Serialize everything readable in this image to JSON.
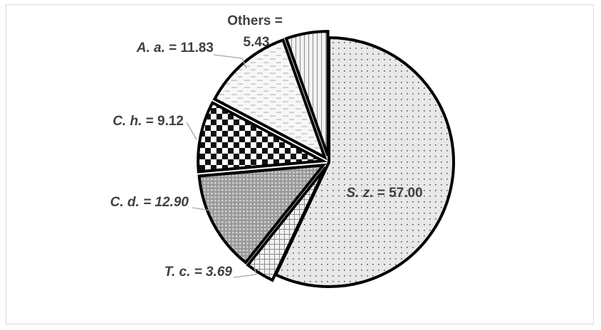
{
  "chart_data": {
    "type": "pie",
    "title": "",
    "slices": [
      {
        "name": "S. z.",
        "value": 57.0,
        "display": "57.00",
        "name_style": "italic",
        "value_style": "normal",
        "pattern": "dots",
        "exploded": false
      },
      {
        "name": "T. c.",
        "value": 3.69,
        "display": "3.69",
        "name_style": "italic",
        "value_style": "italic",
        "pattern": "crosshatch",
        "exploded": true
      },
      {
        "name": "C. d.",
        "value": 12.9,
        "display": "12.90",
        "name_style": "italic",
        "value_style": "italic",
        "pattern": "dense-grid",
        "exploded": true
      },
      {
        "name": "C. h.",
        "value": 9.12,
        "display": "9.12",
        "name_style": "italic",
        "value_style": "normal",
        "pattern": "checkerboard",
        "exploded": true
      },
      {
        "name": "A. a.",
        "value": 11.83,
        "display": "11.83",
        "name_style": "italic",
        "value_style": "normal",
        "pattern": "dashes",
        "exploded": true
      },
      {
        "name": "Others",
        "value": 5.43,
        "display": "5.43",
        "name_style": "normal",
        "value_style": "normal",
        "pattern": "vertical-lines",
        "exploded": true
      }
    ],
    "start_angle_deg": 0,
    "direction": "clockwise",
    "legend": "none",
    "colors": {
      "text": "#404040",
      "outline": "#000000",
      "leader": "#a6a6a6",
      "frame": "#d9d9d9"
    }
  }
}
